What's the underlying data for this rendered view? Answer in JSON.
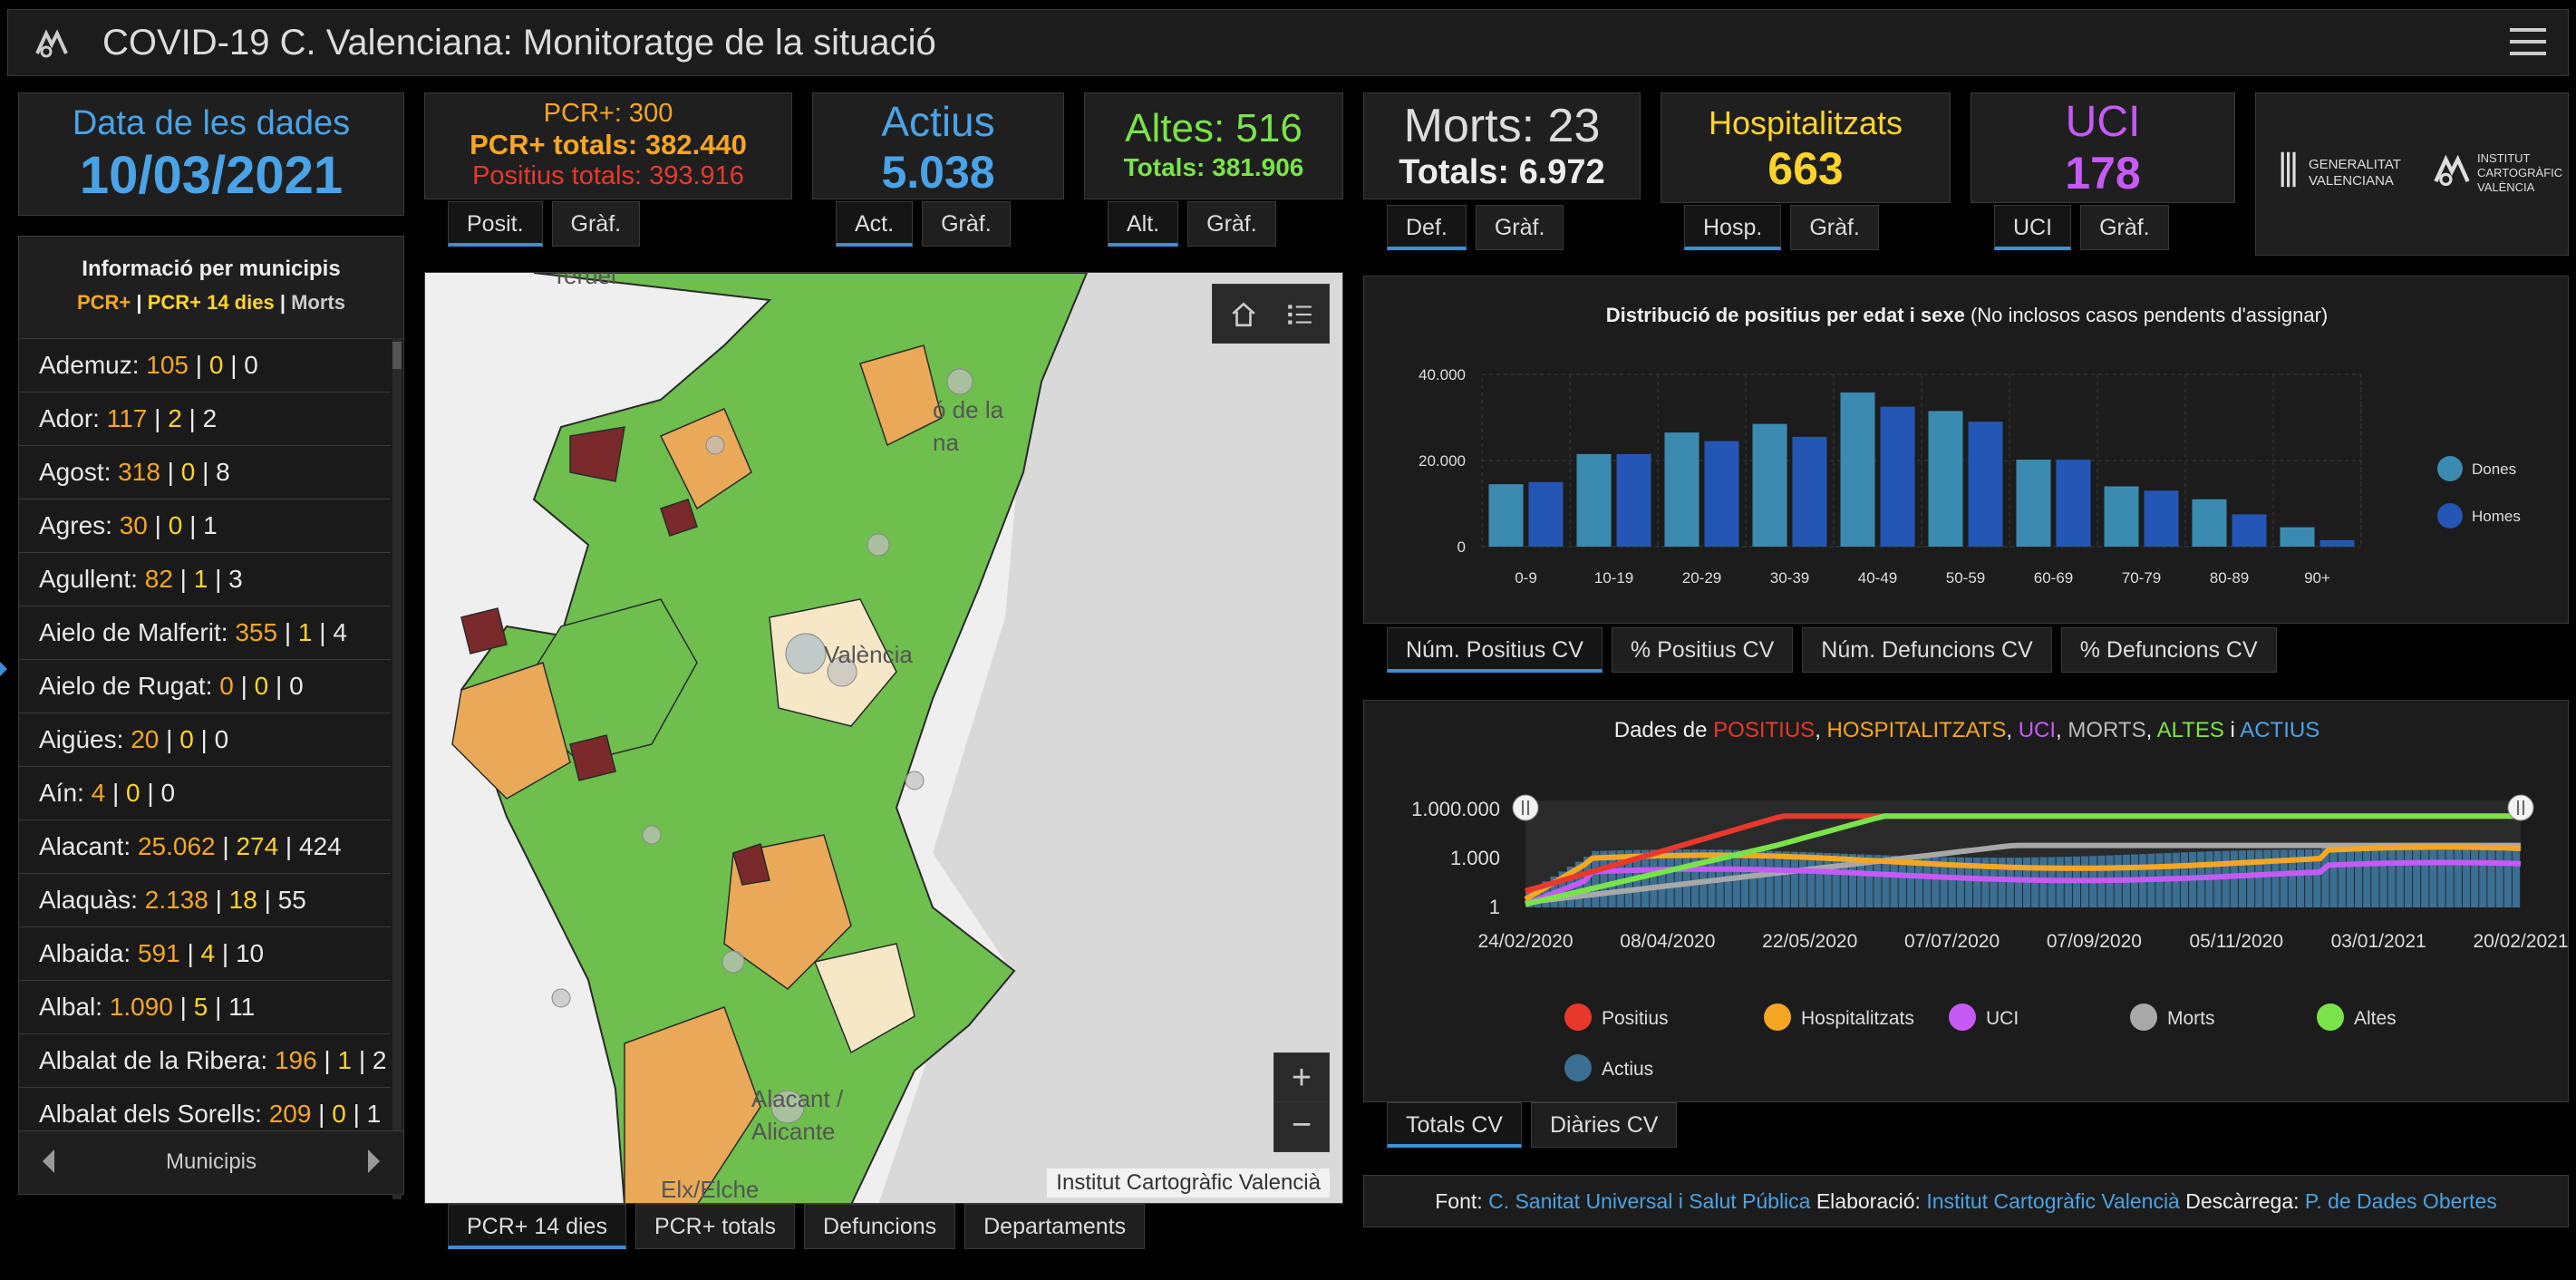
{
  "header": {
    "title": "COVID-19 C. Valenciana: Monitoratge de la situació"
  },
  "date_card": {
    "label": "Data de les dades",
    "value": "10/03/2021"
  },
  "pcr_card": {
    "line1": "PCR+: 300",
    "line2": "PCR+ totals: 382.440",
    "line3": "Positius totals: 393.916",
    "tabs": [
      "Posit.",
      "Gràf."
    ]
  },
  "actius_card": {
    "label": "Actius",
    "value": "5.038",
    "tabs": [
      "Act.",
      "Gràf."
    ]
  },
  "altes_card": {
    "label": "Altes: 516",
    "value": "Totals: 381.906",
    "tabs": [
      "Alt.",
      "Gràf."
    ]
  },
  "morts_card": {
    "label": "Morts: 23",
    "value": "Totals: 6.972",
    "tabs": [
      "Def.",
      "Gràf."
    ]
  },
  "hosp_card": {
    "label": "Hospitalitzats",
    "value": "663",
    "tabs": [
      "Hosp.",
      "Gràf."
    ]
  },
  "uci_card": {
    "label": "UCI",
    "value": "178",
    "tabs": [
      "UCI",
      "Gràf."
    ]
  },
  "logos": {
    "gv_line1": "GENERALITAT",
    "gv_line2": "VALENCIANA",
    "icv_line1": "INSTITUT",
    "icv_line2": "CARTOGRÀFIC",
    "icv_line3": "VALÈNCIA"
  },
  "municipis": {
    "title": "Informació per municipis",
    "legend_a": "PCR+",
    "legend_b": "PCR+ 14 dies",
    "legend_c": "Morts",
    "footer_label": "Municipis",
    "items": [
      {
        "name": "Ademuz:",
        "a": "105",
        "b": "0",
        "c": "0"
      },
      {
        "name": "Ador:",
        "a": "117",
        "b": "2",
        "c": "2"
      },
      {
        "name": "Agost:",
        "a": "318",
        "b": "0",
        "c": "8"
      },
      {
        "name": "Agres:",
        "a": "30",
        "b": "0",
        "c": "1"
      },
      {
        "name": "Agullent:",
        "a": "82",
        "b": "1",
        "c": "3"
      },
      {
        "name": "Aielo de Malferit:",
        "a": "355",
        "b": "1",
        "c": "4"
      },
      {
        "name": "Aielo de Rugat:",
        "a": "0",
        "b": "0",
        "c": "0"
      },
      {
        "name": "Aigües:",
        "a": "20",
        "b": "0",
        "c": "0"
      },
      {
        "name": "Aín:",
        "a": "4",
        "b": "0",
        "c": "0"
      },
      {
        "name": "Alacant:",
        "a": "25.062",
        "b": "274",
        "c": "424"
      },
      {
        "name": "Alaquàs:",
        "a": "2.138",
        "b": "18",
        "c": "55"
      },
      {
        "name": "Albaida:",
        "a": "591",
        "b": "4",
        "c": "10"
      },
      {
        "name": "Albal:",
        "a": "1.090",
        "b": "5",
        "c": "11"
      },
      {
        "name": "Albalat de la Ribera:",
        "a": "196",
        "b": "1",
        "c": "2"
      },
      {
        "name": "Albalat dels Sorells:",
        "a": "209",
        "b": "0",
        "c": "1"
      }
    ]
  },
  "map": {
    "labels": [
      "Teruel",
      "ó de la",
      "na",
      "València",
      "Alacant /",
      "Alicante",
      "Elx/Elche"
    ],
    "attribution": "Institut Cartogràfic Valencià",
    "tabs": [
      "PCR+ 14 dies",
      "PCR+ totals",
      "Defuncions",
      "Departaments"
    ]
  },
  "age_chart": {
    "tabs": [
      "Núm. Positius CV",
      "% Positius CV",
      "Núm. Defuncions CV",
      "% Defuncions CV"
    ]
  },
  "time_chart": {
    "tabs": [
      "Totals CV",
      "Diàries CV"
    ]
  },
  "footer": {
    "font_label": "Font:",
    "font_link": "C. Sanitat Universal i Salut Pública",
    "elab_label": "Elaboració:",
    "elab_link": "Institut Cartogràfic Valencià",
    "desc_label": "Descàrrega:",
    "desc_link": "P. de Dades Obertes"
  },
  "chart_data": [
    {
      "type": "bar",
      "title": "Distribució de positius per edat i sexe",
      "subtitle": "(No inclosos casos pendents d'assignar)",
      "categories": [
        "0-9",
        "10-19",
        "20-29",
        "30-39",
        "40-49",
        "50-59",
        "60-69",
        "70-79",
        "80-89",
        "90+"
      ],
      "series": [
        {
          "name": "Dones",
          "color": "#3b8bb0",
          "values": [
            14500,
            21500,
            26500,
            28500,
            35800,
            31500,
            20200,
            14000,
            11000,
            4500
          ]
        },
        {
          "name": "Homes",
          "color": "#2456b5",
          "values": [
            15000,
            21500,
            24500,
            25500,
            32500,
            29000,
            20200,
            13000,
            7500,
            1500
          ]
        }
      ],
      "yticks": [
        "0",
        "20.000",
        "40.000"
      ],
      "ylim": [
        0,
        40000
      ],
      "legend": "right"
    },
    {
      "type": "line",
      "title_parts": [
        {
          "text": "Dades de ",
          "color": "#eeeeee"
        },
        {
          "text": "POSITIUS",
          "color": "#e8382c"
        },
        {
          "text": ", ",
          "color": "#eeeeee"
        },
        {
          "text": "HOSPITALITZATS",
          "color": "#f5a623"
        },
        {
          "text": ", ",
          "color": "#eeeeee"
        },
        {
          "text": "UCI",
          "color": "#c65af5"
        },
        {
          "text": ", ",
          "color": "#eeeeee"
        },
        {
          "text": "MORTS",
          "color": "#bbbbbb"
        },
        {
          "text": ", ",
          "color": "#eeeeee"
        },
        {
          "text": "ALTES",
          "color": "#7be34a"
        },
        {
          "text": " i ",
          "color": "#eeeeee"
        },
        {
          "text": "ACTIUS",
          "color": "#4aa3e6"
        }
      ],
      "yscale": "log",
      "yticks": [
        "1",
        "1.000",
        "1.000.000"
      ],
      "xticks": [
        "24/02/2020",
        "08/04/2020",
        "22/05/2020",
        "07/07/2020",
        "07/09/2020",
        "05/11/2020",
        "03/01/2021",
        "20/02/2021"
      ],
      "series": [
        {
          "name": "Positius",
          "color": "#e8382c"
        },
        {
          "name": "Hospitalitzats",
          "color": "#f5a623"
        },
        {
          "name": "UCI",
          "color": "#c65af5"
        },
        {
          "name": "Morts",
          "color": "#a8a8a8"
        },
        {
          "name": "Altes",
          "color": "#7be34a"
        },
        {
          "name": "Actius",
          "color": "#3b6f94"
        }
      ]
    }
  ]
}
